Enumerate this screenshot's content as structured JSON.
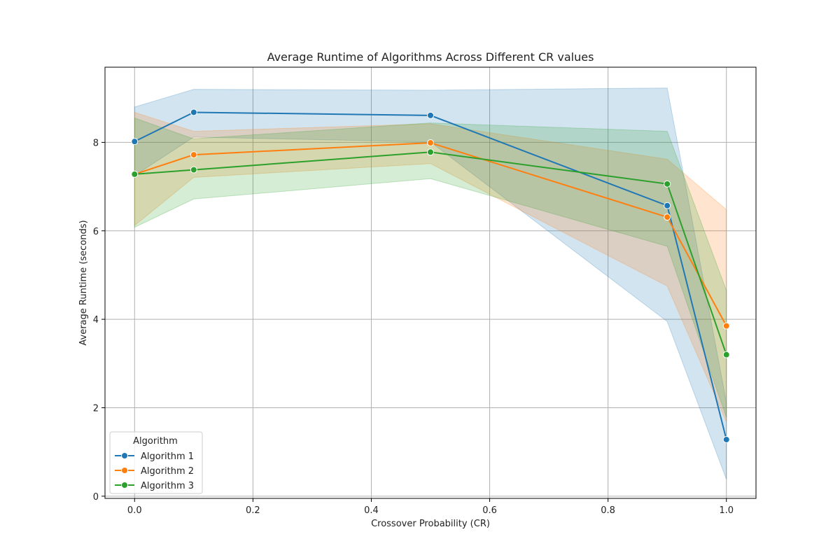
{
  "chart_data": {
    "type": "line",
    "title": "Average Runtime of Algorithms Across Different CR values",
    "xlabel": "Crossover Probability (CR)",
    "ylabel": "Average Runtime (seconds)",
    "xlim": [
      -0.05,
      1.05
    ],
    "ylim": [
      -0.05,
      9.7
    ],
    "xticks": [
      0.0,
      0.2,
      0.4,
      0.6,
      0.8,
      1.0
    ],
    "xtick_labels": [
      "0.0",
      "0.2",
      "0.4",
      "0.6",
      "0.8",
      "1.0"
    ],
    "yticks": [
      0,
      2,
      4,
      6,
      8
    ],
    "ytick_labels": [
      "0",
      "2",
      "4",
      "6",
      "8"
    ],
    "grid": true,
    "legend": {
      "title": "Algorithm",
      "placement": "lower-left"
    },
    "x": [
      0.0,
      0.1,
      0.5,
      0.9,
      1.0
    ],
    "series": [
      {
        "name": "Algorithm 1",
        "color": "#1f77b4",
        "values": [
          8.02,
          8.68,
          8.61,
          6.57,
          1.28
        ],
        "band_lower": [
          7.25,
          8.12,
          8.01,
          3.95,
          0.38
        ],
        "band_upper": [
          8.8,
          9.2,
          9.18,
          9.23,
          2.12
        ]
      },
      {
        "name": "Algorithm 2",
        "color": "#ff7f0e",
        "values": [
          7.28,
          7.72,
          7.99,
          6.31,
          3.85
        ],
        "band_lower": [
          6.12,
          7.21,
          7.52,
          4.75,
          1.68
        ],
        "band_upper": [
          8.68,
          8.25,
          8.42,
          7.62,
          6.48
        ]
      },
      {
        "name": "Algorithm 3",
        "color": "#2ca02c",
        "values": [
          7.28,
          7.38,
          7.78,
          7.06,
          3.2
        ],
        "band_lower": [
          6.08,
          6.72,
          7.18,
          5.65,
          1.78
        ],
        "band_upper": [
          8.55,
          8.08,
          8.44,
          8.25,
          4.65
        ]
      }
    ]
  }
}
